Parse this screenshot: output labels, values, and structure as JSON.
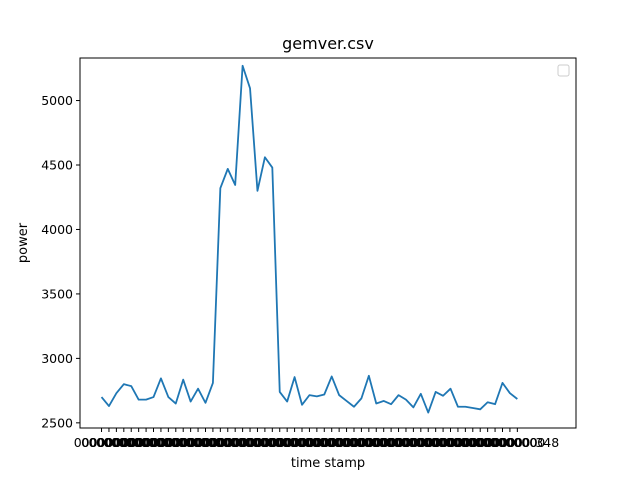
{
  "chart_data": {
    "type": "line",
    "title": "gemver.csv",
    "xlabel": "time stamp",
    "ylabel": "power",
    "xlim": [
      -2.9,
      63.9
    ],
    "ylim": [
      2460,
      5330
    ],
    "yticks": [
      "2500",
      "3000",
      "3500",
      "4000",
      "4500",
      "5000"
    ],
    "legend": "top-right",
    "grid": false,
    "line_color": "#1f77b4",
    "x_tick_label_fragment": "0000000",
    "x_tick_label_last": "348",
    "series": [
      {
        "values": [
          2700,
          2630,
          2730,
          2800,
          2785,
          2680,
          2680,
          2700,
          2845,
          2700,
          2650,
          2835,
          2665,
          2765,
          2655,
          2810,
          4320,
          4470,
          4345,
          5270,
          5095,
          4300,
          4560,
          4480,
          2740,
          2665,
          2855,
          2640,
          2715,
          2705,
          2720,
          2860,
          2715,
          2670,
          2625,
          2690,
          2865,
          2650,
          2670,
          2645,
          2715,
          2680,
          2620,
          2725,
          2580,
          2740,
          2710,
          2765,
          2625,
          2625,
          2615,
          2605,
          2660,
          2645,
          2810,
          2730,
          2685
        ]
      }
    ]
  }
}
